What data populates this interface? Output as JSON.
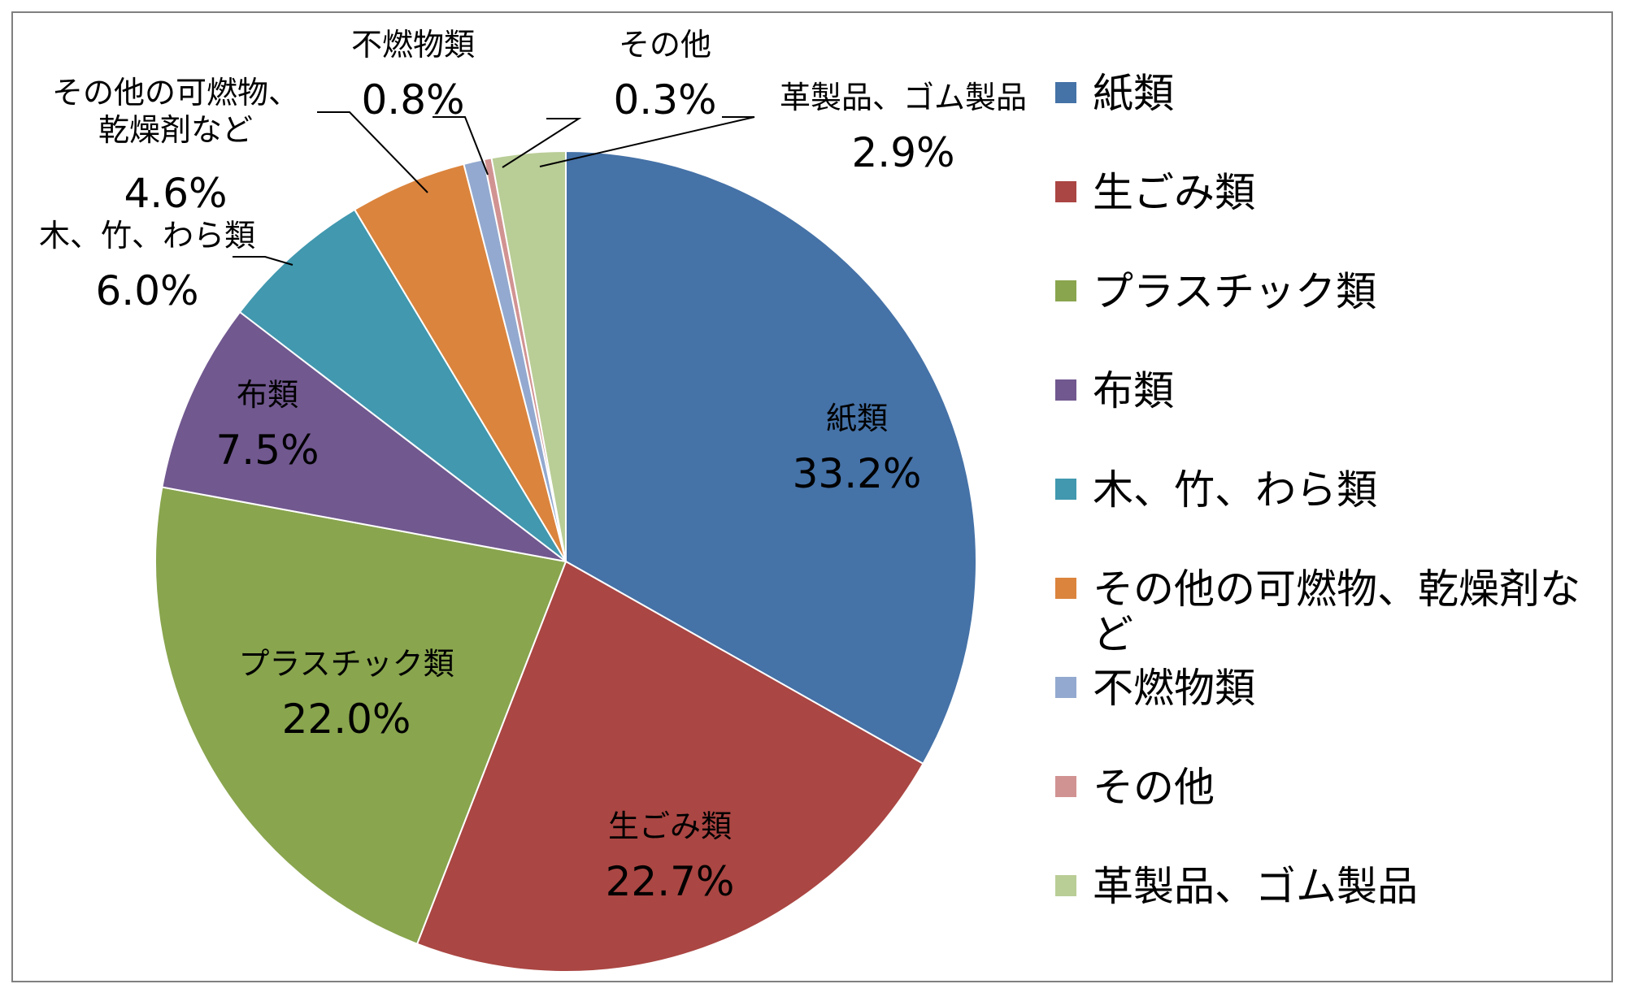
{
  "chart_data": {
    "type": "pie",
    "title": "",
    "slices": [
      {
        "label": "紙類",
        "value": 33.2,
        "display": "33.2%",
        "color": "#4572A7"
      },
      {
        "label": "生ごみ類",
        "value": 22.7,
        "display": "22.7%",
        "color": "#AA4643"
      },
      {
        "label": "プラスチック類",
        "value": 22.0,
        "display": "22.0%",
        "color": "#89A54E"
      },
      {
        "label": "布類",
        "value": 7.5,
        "display": "7.5%",
        "color": "#71588F"
      },
      {
        "label": "木、竹、わら類",
        "value": 6.0,
        "display": "6.0%",
        "color": "#4198AF"
      },
      {
        "label": "その他の可燃物、乾燥剤など",
        "value": 4.6,
        "display": "4.6%",
        "color": "#DB843D"
      },
      {
        "label": "不燃物類",
        "value": 0.8,
        "display": "0.8%",
        "color": "#93A9CF"
      },
      {
        "label": "その他",
        "value": 0.3,
        "display": "0.3%",
        "color": "#D19392"
      },
      {
        "label": "革製品、ゴム製品",
        "value": 2.9,
        "display": "2.9%",
        "color": "#B9CD96"
      }
    ],
    "start_direction": "12 o'clock",
    "direction": "clockwise",
    "legend_position": "right"
  }
}
